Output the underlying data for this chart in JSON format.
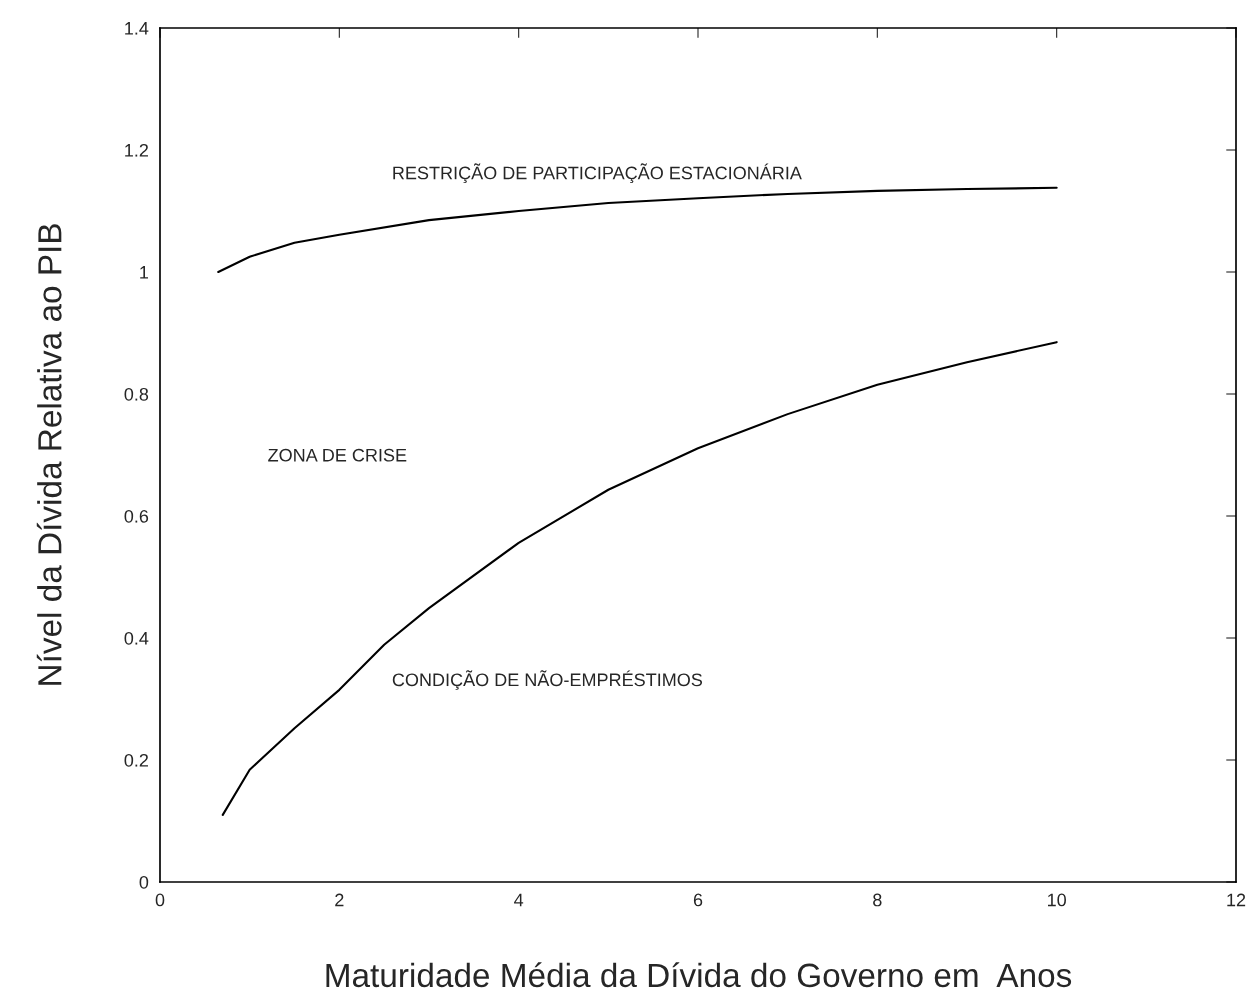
{
  "chart_data": {
    "type": "line",
    "xlabel": "Maturidade Média da Dívida do Governo em  Anos",
    "ylabel": "Nível da Dívida Relativa ao PIB",
    "xlim": [
      0,
      12
    ],
    "xticks": [
      0,
      2,
      4,
      6,
      8,
      10,
      12
    ],
    "ylim": [
      0,
      1.4
    ],
    "yticks": [
      0,
      0.2,
      0.4,
      0.6,
      0.8,
      1,
      1.2,
      1.4
    ],
    "grid": false,
    "legend": false,
    "series": [
      {
        "color": "#000000",
        "x": [
          0.65,
          1,
          1.5,
          2,
          3,
          4,
          5,
          6,
          7,
          8,
          9,
          10
        ],
        "values": [
          1.0,
          1.025,
          1.048,
          1.061,
          1.085,
          1.1,
          1.113,
          1.121,
          1.128,
          1.133,
          1.136,
          1.138
        ]
      },
      {
        "color": "#000000",
        "x": [
          0.7,
          1,
          1.5,
          2,
          2.5,
          3,
          4,
          5,
          6,
          7,
          8,
          9,
          10
        ],
        "values": [
          0.11,
          0.184,
          0.252,
          0.315,
          0.389,
          0.449,
          0.556,
          0.643,
          0.711,
          0.767,
          0.815,
          0.852,
          0.885
        ]
      }
    ],
    "annotations": [
      "RESTRIÇÃO DE PARTICIPAÇÃO ESTACIONÁRIA",
      "ZONA DE CRISE",
      "CONDIÇÃO DE NÃO-EMPRÉSTIMOS"
    ]
  }
}
